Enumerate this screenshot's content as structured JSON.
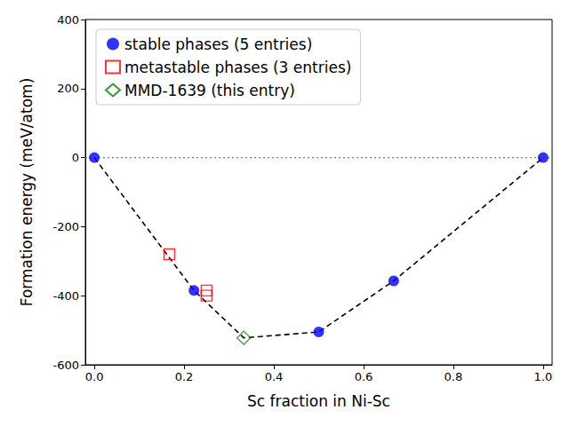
{
  "chart_data": {
    "type": "scatter",
    "x_label": "Sc fraction in Ni-Sc",
    "y_label": "Formation energy (meV/atom)",
    "xlim": [
      -0.02,
      1.02
    ],
    "xticks": [
      {
        "value": 0,
        "label": "0.0"
      },
      {
        "value": 0.2,
        "label": "0.2"
      },
      {
        "value": 0.4,
        "label": "0.4"
      },
      {
        "value": 0.6,
        "label": "0.6"
      },
      {
        "value": 0.8,
        "label": "0.8"
      },
      {
        "value": 1,
        "label": "1.0"
      }
    ],
    "ylim": [
      -600,
      400
    ],
    "yticks": [
      -600,
      -400,
      -200,
      0,
      200,
      400
    ],
    "grid": false,
    "legend": "upper left",
    "series": [
      {
        "type": "line",
        "color": "#000000",
        "line_style": "dashed",
        "x": [
          0,
          0.222,
          0.333,
          0.5,
          0.667,
          1
        ],
        "values": [
          0,
          -385,
          -522,
          -505,
          -357,
          0
        ]
      },
      {
        "type": "line",
        "color": "#808080",
        "line_style": "dotted",
        "x": [
          -0.02,
          1.02
        ],
        "values": [
          0,
          0
        ]
      },
      {
        "name": "stable phases (5 entries)",
        "type": "scatter",
        "color": "#0000ff",
        "marker": "circle",
        "x": [
          0,
          0.222,
          0.5,
          0.667,
          1
        ],
        "values": [
          0,
          -385,
          -505,
          -357,
          0
        ]
      },
      {
        "name": "metastable phases (3 entries)",
        "type": "scatter",
        "color": "#ff0000",
        "marker": "open_square",
        "x": [
          0.167,
          0.25,
          0.25
        ],
        "values": [
          -280,
          -385,
          -400
        ]
      },
      {
        "name": "MMD-1639 (this entry)",
        "type": "scatter",
        "color": "#008000",
        "marker": "open_diamond",
        "x": [
          0.333
        ],
        "values": [
          -522
        ]
      }
    ]
  }
}
